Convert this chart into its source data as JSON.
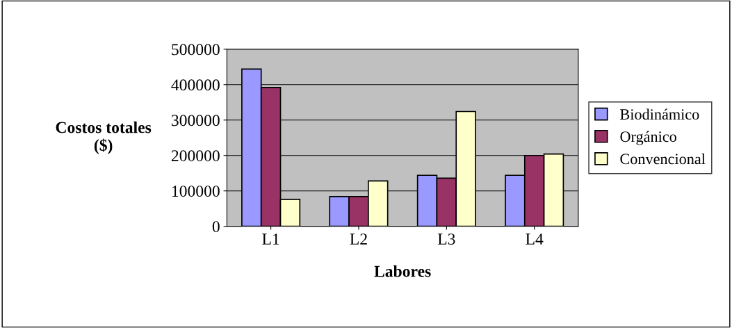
{
  "chart_data": {
    "type": "bar",
    "xlabel": "Labores",
    "ylabel": "Costos totales\n($)",
    "categories": [
      "L1",
      "L2",
      "L3",
      "L4"
    ],
    "series": [
      {
        "name": "Biodinámico",
        "color": "#9999ff",
        "values": [
          444000,
          84000,
          144000,
          144000
        ]
      },
      {
        "name": "Orgánico",
        "color": "#993366",
        "values": [
          392000,
          84000,
          136000,
          200000
        ]
      },
      {
        "name": "Convencional",
        "color": "#ffffcc",
        "values": [
          76000,
          128000,
          324000,
          204000
        ]
      }
    ],
    "ylim": [
      0,
      500000
    ],
    "yticks": [
      0,
      100000,
      200000,
      300000,
      400000,
      500000
    ],
    "grid": "y",
    "legend": "right"
  }
}
